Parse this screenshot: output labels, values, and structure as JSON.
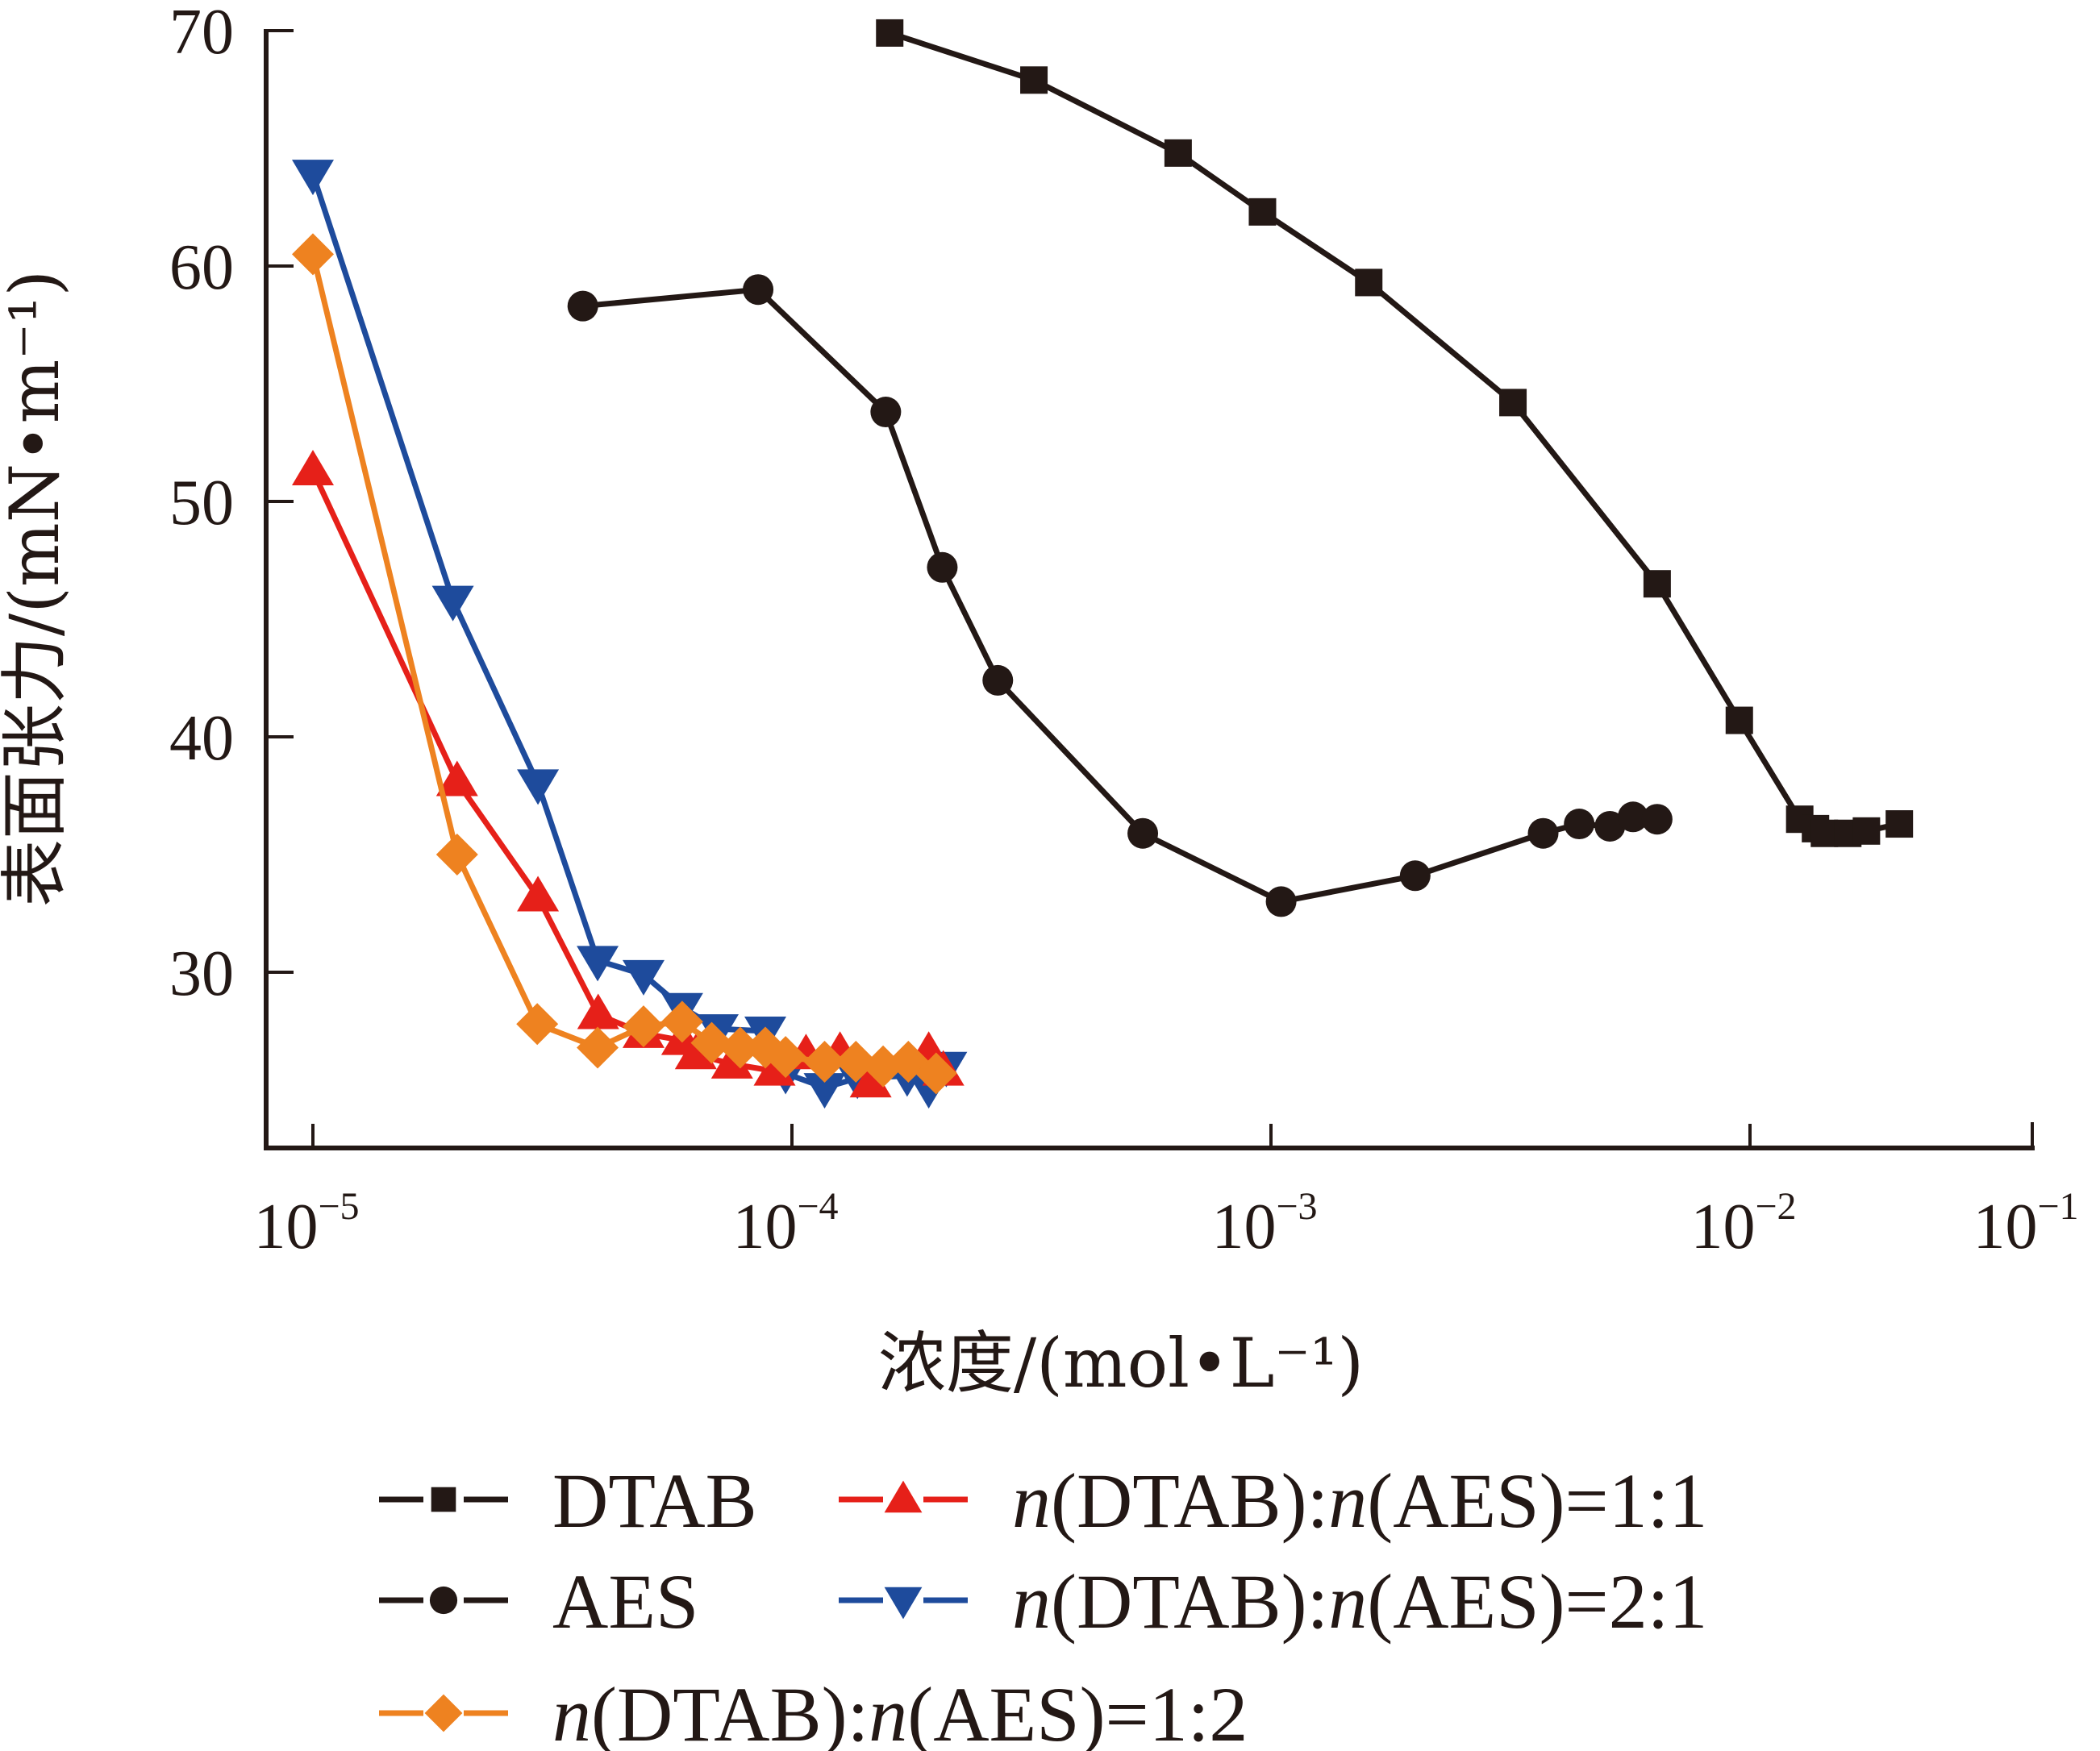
{
  "chart_data": {
    "type": "line",
    "title": "",
    "xlabel": "浓度/(mol•L⁻¹)",
    "ylabel": "表面张力/(mN•m⁻¹)",
    "x_scale": "log",
    "xlim": [
      8e-06,
      0.038
    ],
    "ylim": [
      22.5,
      70
    ],
    "grid": false,
    "legend_position": "bottom",
    "x_ticks": [
      {
        "value": 1e-05,
        "base": "10",
        "exp": "−5"
      },
      {
        "value": 0.0001,
        "base": "10",
        "exp": "−4"
      },
      {
        "value": 0.001,
        "base": "10",
        "exp": "−3"
      },
      {
        "value": 0.01,
        "base": "10",
        "exp": "−2"
      },
      {
        "value": 0.1,
        "base": "10",
        "exp": "−1"
      }
    ],
    "y_ticks": [
      30,
      40,
      50,
      60,
      70
    ],
    "series": [
      {
        "name": "DTAB",
        "label_parts": [
          {
            "text": "DTAB",
            "italic": false
          }
        ],
        "color": "#231815",
        "marker": "square",
        "x": [
          0.00016,
          0.00032,
          0.00064,
          0.00096,
          0.0016,
          0.0032,
          0.0064,
          0.0095,
          0.0127,
          0.0137,
          0.0143,
          0.016,
          0.0175,
          0.0205
        ],
        "y": [
          69.9,
          67.9,
          64.8,
          62.3,
          59.3,
          54.2,
          46.5,
          40.7,
          36.5,
          36.1,
          35.9,
          35.9,
          36.0,
          36.3
        ]
      },
      {
        "name": "AES",
        "label_parts": [
          {
            "text": "AES",
            "italic": false
          }
        ],
        "color": "#231815",
        "marker": "circle",
        "x": [
          3.66e-05,
          8.5e-05,
          0.000157,
          0.000206,
          0.000269,
          0.00054,
          0.00105,
          0.002,
          0.0037,
          0.0044,
          0.0051,
          0.0057,
          0.0064
        ],
        "y": [
          58.3,
          59.0,
          53.8,
          47.2,
          42.4,
          35.9,
          33.0,
          34.1,
          35.9,
          36.3,
          36.2,
          36.6,
          36.5
        ]
      },
      {
        "name": "n(DTAB):n(AES)=1:2",
        "label_parts": [
          {
            "text": "n",
            "italic": true
          },
          {
            "text": "(DTAB):",
            "italic": false
          },
          {
            "text": "n",
            "italic": true
          },
          {
            "text": "(AES)=1:2",
            "italic": false
          }
        ],
        "color": "#ee8220",
        "marker": "diamond",
        "x": [
          1e-05,
          2e-05,
          2.94e-05,
          3.93e-05,
          4.9e-05,
          5.9e-05,
          6.8e-05,
          7.8e-05,
          8.8e-05,
          9.7e-05,
          0.000117,
          0.000136,
          0.000155,
          0.000175,
          0.0002
        ],
        "y": [
          60.5,
          35.0,
          27.8,
          26.8,
          27.7,
          27.9,
          27.0,
          26.8,
          26.8,
          26.4,
          26.2,
          26.2,
          26.0,
          26.2,
          25.7
        ]
      },
      {
        "name": "n(DTAB):n(AES)=1:1",
        "label_parts": [
          {
            "text": "n",
            "italic": true
          },
          {
            "text": "(DTAB):",
            "italic": false
          },
          {
            "text": "n",
            "italic": true
          },
          {
            "text": "(AES)=1:1",
            "italic": false
          }
        ],
        "color": "#e62019",
        "marker": "triangle-up",
        "x": [
          1e-05,
          2e-05,
          2.95e-05,
          3.94e-05,
          4.9e-05,
          5.9e-05,
          6.3e-05,
          7.5e-05,
          9.2e-05,
          0.000107,
          0.000126,
          0.000146,
          0.000193,
          0.000207
        ],
        "y": [
          51.3,
          38.1,
          33.2,
          28.2,
          27.4,
          27.1,
          26.5,
          26.1,
          25.8,
          26.5,
          26.6,
          25.3,
          26.6,
          25.8
        ]
      },
      {
        "name": "n(DTAB):n(AES)=2:1",
        "label_parts": [
          {
            "text": "n",
            "italic": true
          },
          {
            "text": "(DTAB):",
            "italic": false
          },
          {
            "text": "n",
            "italic": true
          },
          {
            "text": "(AES)=2:1",
            "italic": false
          }
        ],
        "color": "#1e4b9c",
        "marker": "triangle-down",
        "x": [
          1e-05,
          1.96e-05,
          2.95e-05,
          3.93e-05,
          4.9e-05,
          5.9e-05,
          7e-05,
          8.8e-05,
          9.7e-05,
          0.000117,
          0.000137,
          0.000174,
          0.000193,
          0.00021
        ],
        "y": [
          63.9,
          45.8,
          38.0,
          30.5,
          29.9,
          28.5,
          27.6,
          27.5,
          25.7,
          25.1,
          25.5,
          25.6,
          25.1,
          26.0
        ]
      }
    ],
    "legend_order": [
      0,
      3,
      1,
      4,
      2
    ]
  }
}
